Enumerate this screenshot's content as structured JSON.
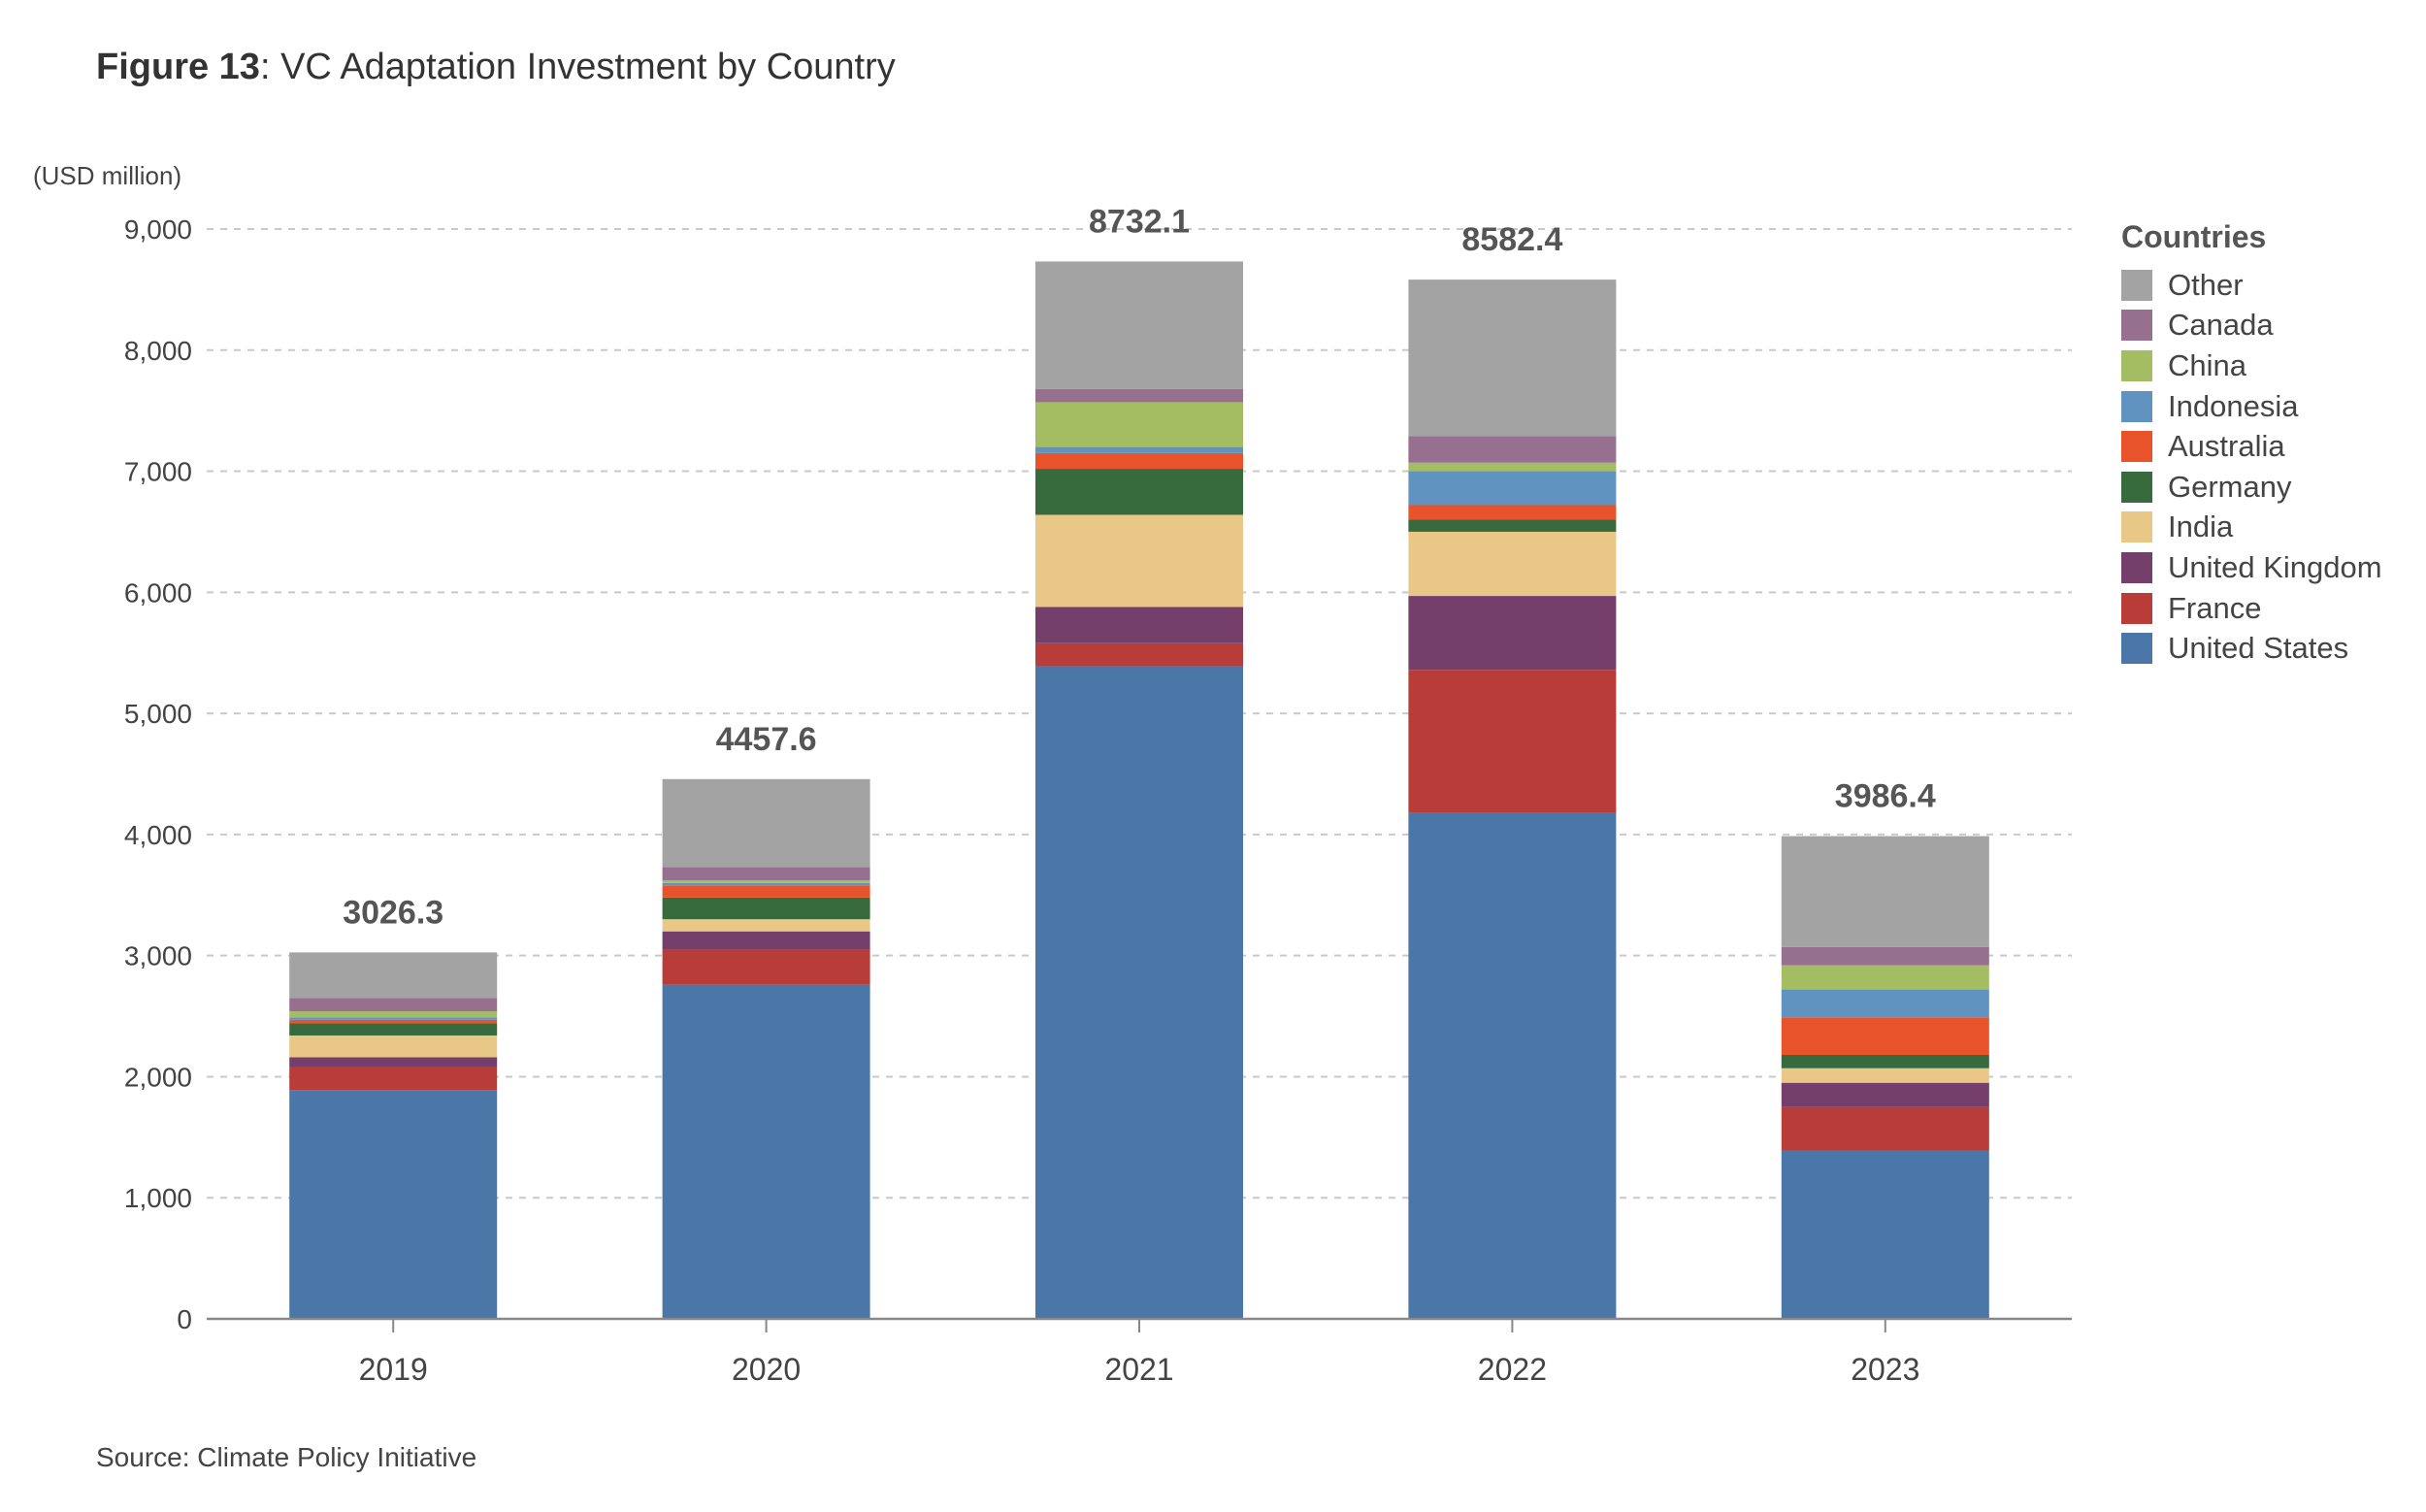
{
  "figure": {
    "label": "Figure 13",
    "title": ": VC Adaptation Investment by Country",
    "unit": "(USD million)",
    "source": "Source: Climate Policy Initiative"
  },
  "chart_data": {
    "type": "bar",
    "stacked": true,
    "categories": [
      "2019",
      "2020",
      "2021",
      "2022",
      "2023"
    ],
    "ylim": [
      0,
      9000
    ],
    "yticks": [
      0,
      1000,
      2000,
      3000,
      4000,
      5000,
      6000,
      7000,
      8000,
      9000
    ],
    "ytick_labels": [
      "0",
      "1,000",
      "2,000",
      "3,000",
      "4,000",
      "5,000",
      "6,000",
      "7,000",
      "8,000",
      "9,000"
    ],
    "grid": true,
    "legend_title": "Countries",
    "legend_position": "right",
    "totals": [
      "3026.3",
      "4457.6",
      "8732.1",
      "8582.4",
      "3986.4"
    ],
    "series": [
      {
        "name": "United States",
        "color": "#4a76a8",
        "values": [
          1890,
          2760,
          5390,
          4180,
          1390
        ]
      },
      {
        "name": "France",
        "color": "#b83c37",
        "values": [
          190,
          290,
          190,
          1180,
          360
        ]
      },
      {
        "name": "United Kingdom",
        "color": "#743f6b",
        "values": [
          80,
          150,
          300,
          610,
          200
        ]
      },
      {
        "name": "India",
        "color": "#e9c887",
        "values": [
          180,
          100,
          760,
          530,
          120
        ]
      },
      {
        "name": "Germany",
        "color": "#376a3c",
        "values": [
          100,
          180,
          380,
          100,
          110
        ]
      },
      {
        "name": "Australia",
        "color": "#e9532b",
        "values": [
          30,
          100,
          130,
          120,
          310
        ]
      },
      {
        "name": "Indonesia",
        "color": "#6093bf",
        "values": [
          20,
          20,
          50,
          280,
          230
        ]
      },
      {
        "name": "China",
        "color": "#a4bd62",
        "values": [
          50,
          20,
          370,
          70,
          200
        ]
      },
      {
        "name": "Canada",
        "color": "#98708f",
        "values": [
          110,
          110,
          110,
          220,
          150
        ]
      },
      {
        "name": "Other",
        "color": "#a4a3a3",
        "values": [
          376.3,
          727.6,
          1052.1,
          1292.4,
          916.4
        ]
      }
    ]
  }
}
